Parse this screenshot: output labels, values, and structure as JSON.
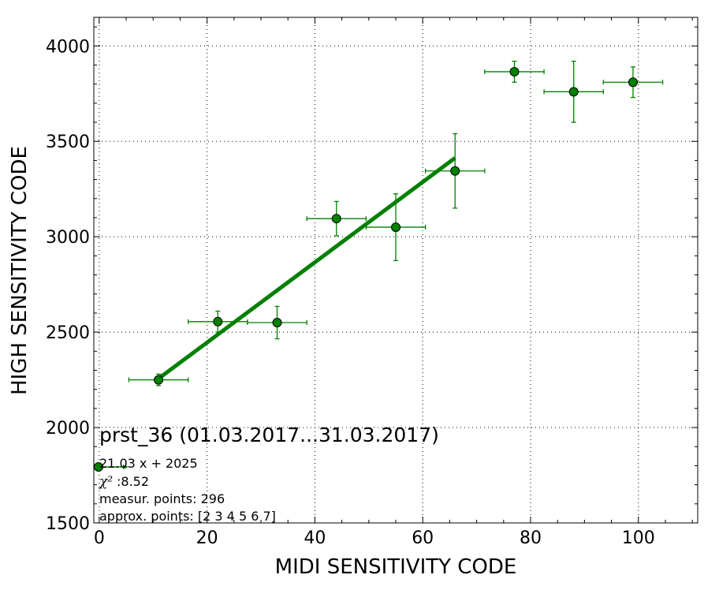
{
  "chart_data": {
    "type": "scatter",
    "xlabel": "MIDI SENSITIVITY CODE",
    "ylabel": "HIGH SENSITIVITY CODE",
    "xlim": [
      -1,
      111
    ],
    "ylim": [
      1500,
      4150
    ],
    "x_ticks": [
      0,
      20,
      40,
      60,
      80,
      100
    ],
    "y_ticks": [
      1500,
      2000,
      2500,
      3000,
      3500,
      4000
    ],
    "grid": true,
    "color": "#008000",
    "points": [
      {
        "x": 11,
        "y": 2250,
        "xerr": 5.5,
        "yerr": 30
      },
      {
        "x": 22,
        "y": 2555,
        "xerr": 5.5,
        "yerr": 55
      },
      {
        "x": 33,
        "y": 2550,
        "xerr": 5.5,
        "yerr": 85
      },
      {
        "x": 44,
        "y": 3095,
        "xerr": 5.5,
        "yerr": 90
      },
      {
        "x": 55,
        "y": 3050,
        "xerr": 5.5,
        "yerr": 175
      },
      {
        "x": 66,
        "y": 3345,
        "xerr": 5.5,
        "yerr": 195
      },
      {
        "x": 77,
        "y": 3865,
        "xerr": 5.5,
        "yerr": 55
      },
      {
        "x": 88,
        "y": 3760,
        "xerr": 5.5,
        "yerr": 160
      },
      {
        "x": 99,
        "y": 3810,
        "xerr": 5.5,
        "yerr": 80
      }
    ],
    "fit": {
      "slope": 21.03,
      "intercept": 2025,
      "x_range": [
        11,
        66
      ]
    },
    "legend": {
      "title": "prst_36 (01.03.2017...31.03.2017)",
      "equation": "21.03 x + 2025",
      "chi2_symbol": "χ²",
      "chi2_value": ":8.52",
      "measur_points": "measur. points: 296",
      "approx_points": "approx. points: [2 3 4 5 6 7]"
    }
  }
}
